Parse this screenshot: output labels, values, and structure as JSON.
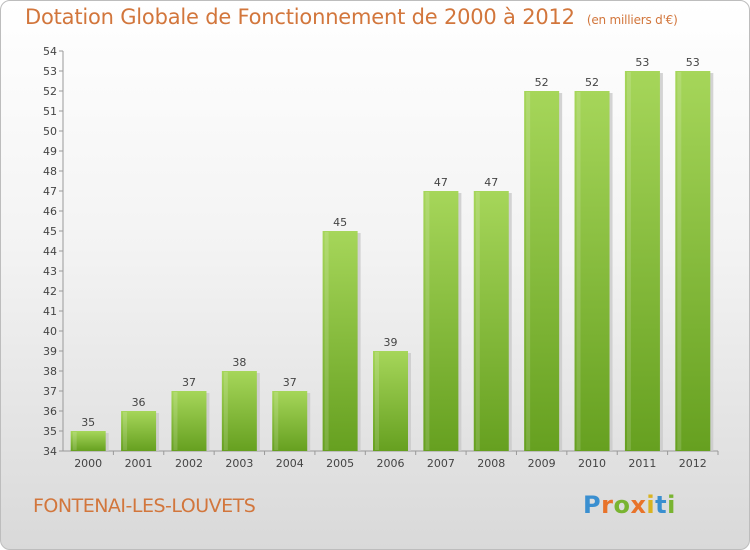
{
  "title": "Dotation Globale de Fonctionnement de 2000 à 2012",
  "unit_note": "(en milliers d'€)",
  "commune": "FONTENAI-LES-LOUVETS",
  "logo": {
    "text": "Proxiti",
    "letters": [
      {
        "ch": "P",
        "color": "#3a8fd0"
      },
      {
        "ch": "r",
        "color": "#e8732a"
      },
      {
        "ch": "o",
        "color": "#79b431"
      },
      {
        "ch": "x",
        "color": "#e8732a"
      },
      {
        "ch": "i",
        "color": "#d9b321"
      },
      {
        "ch": "t",
        "color": "#3a8fd0"
      },
      {
        "ch": "i",
        "color": "#79b431"
      }
    ]
  },
  "chart_data": {
    "type": "bar",
    "title": "Dotation Globale de Fonctionnement de 2000 à 2012",
    "subtitle": "(en milliers d'€)",
    "xlabel": "",
    "ylabel": "",
    "categories": [
      "2000",
      "2001",
      "2002",
      "2003",
      "2004",
      "2005",
      "2006",
      "2007",
      "2008",
      "2009",
      "2010",
      "2011",
      "2012"
    ],
    "values": [
      35,
      36,
      37,
      38,
      37,
      45,
      39,
      47,
      47,
      52,
      52,
      53,
      53
    ],
    "ylim": [
      34,
      54
    ],
    "yticks": [
      34,
      35,
      36,
      37,
      38,
      39,
      40,
      41,
      42,
      43,
      44,
      45,
      46,
      47,
      48,
      49,
      50,
      51,
      52,
      53,
      54
    ],
    "grid": false,
    "bar_color_top": "#a6d65a",
    "bar_color_bottom": "#66a020",
    "axis_color": "#999999",
    "label_color": "#444444"
  }
}
